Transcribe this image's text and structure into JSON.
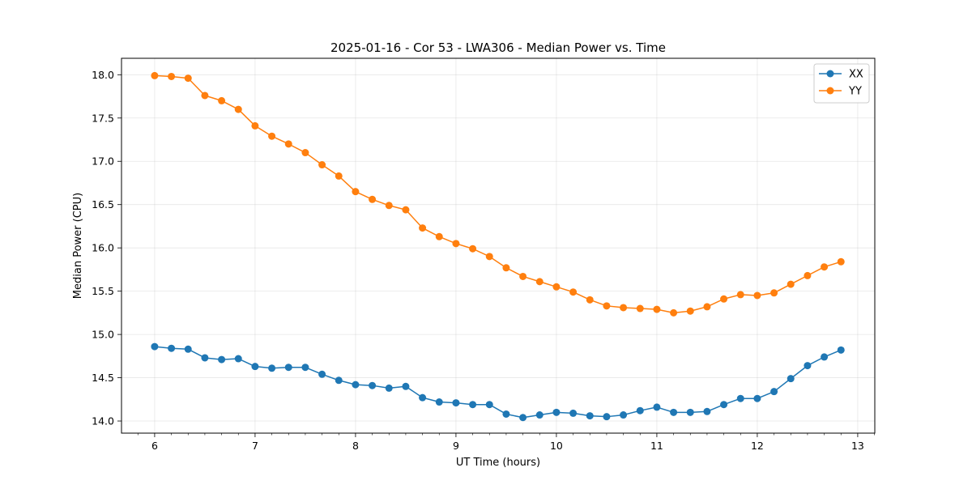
{
  "chart_data": {
    "type": "line",
    "title": "2025-01-16 - Cor 53 - LWA306 - Median Power vs. Time",
    "xlabel": "UT Time (hours)",
    "ylabel": "Median Power (CPU)",
    "xlim": [
      5.67,
      13.17
    ],
    "ylim": [
      13.86,
      18.19
    ],
    "x_ticks": [
      6,
      7,
      8,
      9,
      10,
      11,
      12,
      13
    ],
    "y_ticks": [
      14.0,
      14.5,
      15.0,
      15.5,
      16.0,
      16.5,
      17.0,
      17.5,
      18.0
    ],
    "grid": true,
    "legend_position": "top-right",
    "x": [
      6.0,
      6.1667,
      6.3333,
      6.5,
      6.6667,
      6.8333,
      7.0,
      7.1667,
      7.3333,
      7.5,
      7.6667,
      7.8333,
      8.0,
      8.1667,
      8.3333,
      8.5,
      8.6667,
      8.8333,
      9.0,
      9.1667,
      9.3333,
      9.5,
      9.6667,
      9.8333,
      10.0,
      10.1667,
      10.3333,
      10.5,
      10.6667,
      10.8333,
      11.0,
      11.1667,
      11.3333,
      11.5,
      11.6667,
      11.8333,
      12.0,
      12.1667,
      12.3333,
      12.5,
      12.6667,
      12.8333
    ],
    "series": [
      {
        "name": "XX",
        "color": "#1f77b4",
        "values": [
          14.86,
          14.84,
          14.83,
          14.73,
          14.71,
          14.72,
          14.63,
          14.61,
          14.62,
          14.62,
          14.54,
          14.47,
          14.42,
          14.41,
          14.38,
          14.4,
          14.27,
          14.22,
          14.21,
          14.19,
          14.19,
          14.08,
          14.04,
          14.07,
          14.1,
          14.09,
          14.06,
          14.05,
          14.07,
          14.12,
          14.16,
          14.1,
          14.1,
          14.11,
          14.19,
          14.26,
          14.26,
          14.34,
          14.49,
          14.64,
          14.74,
          14.82
        ]
      },
      {
        "name": "YY",
        "color": "#ff7f0e",
        "values": [
          17.99,
          17.98,
          17.96,
          17.76,
          17.7,
          17.6,
          17.41,
          17.29,
          17.2,
          17.1,
          16.96,
          16.83,
          16.65,
          16.56,
          16.49,
          16.44,
          16.23,
          16.13,
          16.05,
          15.99,
          15.9,
          15.77,
          15.67,
          15.61,
          15.55,
          15.49,
          15.4,
          15.33,
          15.31,
          15.3,
          15.29,
          15.25,
          15.27,
          15.32,
          15.41,
          15.46,
          15.45,
          15.48,
          15.58,
          15.68,
          15.78,
          15.84
        ]
      }
    ]
  }
}
